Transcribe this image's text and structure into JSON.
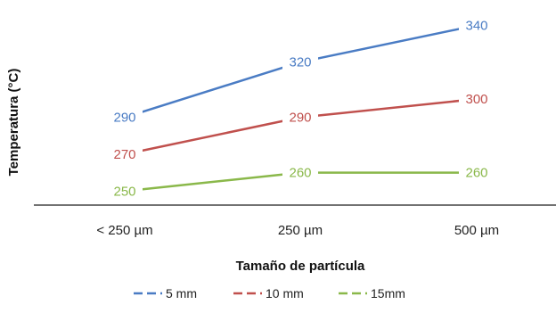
{
  "chart_data": {
    "type": "line",
    "categories": [
      "< 250 µm",
      "250 µm",
      "500 µm"
    ],
    "xlabel": "Tamaño  de partícula",
    "ylabel": "Temperatura (°C)",
    "ylim": [
      240,
      345
    ],
    "grid": false,
    "legend": "bottom",
    "series": [
      {
        "name": "5 mm",
        "values": [
          290,
          320,
          340
        ],
        "color": "#4a7cc4"
      },
      {
        "name": "10 mm",
        "values": [
          270,
          290,
          300
        ],
        "color": "#c0504d"
      },
      {
        "name": "15mm",
        "values": [
          250,
          260,
          260
        ],
        "color": "#8ab84a"
      }
    ]
  }
}
